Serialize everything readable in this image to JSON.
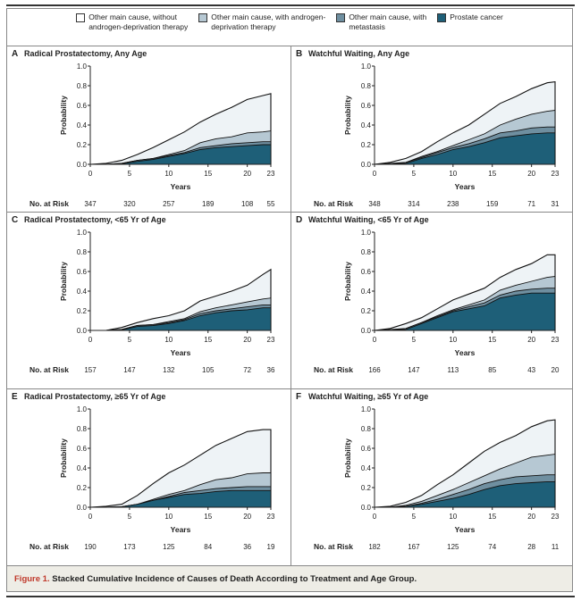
{
  "legend": [
    {
      "label_line1": "Other main cause, without",
      "label_line2": "androgen-deprivation therapy",
      "color": "#eef3f6"
    },
    {
      "label_line1": "Other main cause, with androgen-",
      "label_line2": "deprivation therapy",
      "color": "#b6c8d3"
    },
    {
      "label_line1": "Other main cause, with",
      "label_line2": "metastasis",
      "color": "#6f8fa0"
    },
    {
      "label_line1": "Prostate cancer",
      "label_line2": "",
      "color": "#1e5f78"
    }
  ],
  "caption": {
    "figure_label": "Figure 1.",
    "text": "Stacked Cumulative Incidence of Causes of Death According to Treatment and Age Group."
  },
  "chart_data": [
    {
      "type": "area",
      "stacked": true,
      "letter": "A",
      "title": "Radical Prostatectomy, Any Age",
      "xlabel": "Years",
      "ylabel": "Probability",
      "xlim": [
        0,
        23
      ],
      "ylim": [
        0,
        1
      ],
      "xticks": [
        "0",
        "5",
        "10",
        "15",
        "20",
        "23"
      ],
      "yticks": [
        "0.0",
        "0.2",
        "0.4",
        "0.6",
        "0.8",
        "1.0"
      ],
      "risk_label": "No. at Risk",
      "risk": [
        "347",
        "320",
        "257",
        "189",
        "108",
        "55"
      ],
      "x": [
        0,
        2,
        4,
        6,
        8,
        10,
        12,
        14,
        16,
        18,
        20,
        22,
        23
      ],
      "cumulative_series": [
        {
          "name": "Other main cause, without androgen-deprivation therapy",
          "values": [
            0,
            0.01,
            0.04,
            0.1,
            0.17,
            0.25,
            0.33,
            0.43,
            0.51,
            0.58,
            0.66,
            0.7,
            0.72
          ]
        },
        {
          "name": "Other main cause, with androgen-deprivation therapy",
          "values": [
            0,
            0,
            0.01,
            0.04,
            0.06,
            0.1,
            0.14,
            0.22,
            0.26,
            0.28,
            0.32,
            0.33,
            0.34
          ]
        },
        {
          "name": "Other main cause, with metastasis",
          "values": [
            0,
            0,
            0.01,
            0.04,
            0.06,
            0.09,
            0.12,
            0.17,
            0.19,
            0.21,
            0.22,
            0.23,
            0.23
          ]
        },
        {
          "name": "Prostate cancer",
          "values": [
            0,
            0,
            0.005,
            0.03,
            0.05,
            0.08,
            0.11,
            0.15,
            0.17,
            0.18,
            0.19,
            0.2,
            0.2
          ]
        }
      ]
    },
    {
      "type": "area",
      "stacked": true,
      "letter": "B",
      "title": "Watchful Waiting, Any Age",
      "xlabel": "Years",
      "ylabel": "Probability",
      "xlim": [
        0,
        23
      ],
      "ylim": [
        0,
        1
      ],
      "xticks": [
        "0",
        "5",
        "10",
        "15",
        "20",
        "23"
      ],
      "yticks": [
        "0.0",
        "0.2",
        "0.4",
        "0.6",
        "0.8",
        "1.0"
      ],
      "risk_label": "No. at Risk",
      "risk": [
        "348",
        "314",
        "238",
        "159",
        "71",
        "31"
      ],
      "x": [
        0,
        2,
        4,
        6,
        8,
        10,
        12,
        14,
        16,
        18,
        20,
        22,
        23
      ],
      "cumulative_series": [
        {
          "name": "Other main cause, without androgen-deprivation therapy",
          "values": [
            0,
            0.02,
            0.06,
            0.13,
            0.23,
            0.32,
            0.4,
            0.51,
            0.62,
            0.69,
            0.77,
            0.83,
            0.84
          ]
        },
        {
          "name": "Other main cause, with androgen-deprivation therapy",
          "values": [
            0,
            0.01,
            0.02,
            0.08,
            0.13,
            0.19,
            0.25,
            0.31,
            0.4,
            0.46,
            0.51,
            0.54,
            0.55
          ]
        },
        {
          "name": "Other main cause, with metastasis",
          "values": [
            0,
            0,
            0.02,
            0.07,
            0.12,
            0.17,
            0.21,
            0.26,
            0.32,
            0.34,
            0.37,
            0.38,
            0.38
          ]
        },
        {
          "name": "Prostate cancer",
          "values": [
            0,
            0,
            0.01,
            0.06,
            0.1,
            0.15,
            0.18,
            0.22,
            0.27,
            0.29,
            0.31,
            0.32,
            0.32
          ]
        }
      ]
    },
    {
      "type": "area",
      "stacked": true,
      "letter": "C",
      "title": "Radical Prostatectomy, <65 Yr of Age",
      "xlabel": "Years",
      "ylabel": "Probability",
      "xlim": [
        0,
        23
      ],
      "ylim": [
        0,
        1
      ],
      "xticks": [
        "0",
        "5",
        "10",
        "15",
        "20",
        "23"
      ],
      "yticks": [
        "0.0",
        "0.2",
        "0.4",
        "0.6",
        "0.8",
        "1.0"
      ],
      "risk_label": "No. at Risk",
      "risk": [
        "157",
        "147",
        "132",
        "105",
        "72",
        "36"
      ],
      "x": [
        0,
        2,
        4,
        6,
        8,
        10,
        12,
        14,
        16,
        18,
        20,
        22,
        23
      ],
      "cumulative_series": [
        {
          "name": "Other main cause, without androgen-deprivation therapy",
          "values": [
            0,
            0,
            0.03,
            0.08,
            0.12,
            0.15,
            0.2,
            0.3,
            0.35,
            0.4,
            0.46,
            0.57,
            0.62
          ]
        },
        {
          "name": "Other main cause, with androgen-deprivation therapy",
          "values": [
            0,
            0,
            0.01,
            0.05,
            0.06,
            0.09,
            0.12,
            0.19,
            0.23,
            0.26,
            0.29,
            0.32,
            0.33
          ]
        },
        {
          "name": "Other main cause, with metastasis",
          "values": [
            0,
            0,
            0.01,
            0.05,
            0.06,
            0.08,
            0.11,
            0.17,
            0.2,
            0.22,
            0.24,
            0.26,
            0.26
          ]
        },
        {
          "name": "Prostate cancer",
          "values": [
            0,
            0,
            0.005,
            0.04,
            0.05,
            0.07,
            0.1,
            0.15,
            0.18,
            0.2,
            0.21,
            0.23,
            0.23
          ]
        }
      ]
    },
    {
      "type": "area",
      "stacked": true,
      "letter": "D",
      "title": "Watchful Waiting, <65 Yr of Age",
      "xlabel": "Years",
      "ylabel": "Probability",
      "xlim": [
        0,
        23
      ],
      "ylim": [
        0,
        1
      ],
      "xticks": [
        "0",
        "5",
        "10",
        "15",
        "20",
        "23"
      ],
      "yticks": [
        "0.0",
        "0.2",
        "0.4",
        "0.6",
        "0.8",
        "1.0"
      ],
      "risk_label": "No. at Risk",
      "risk": [
        "166",
        "147",
        "113",
        "85",
        "43",
        "20"
      ],
      "x": [
        0,
        2,
        4,
        6,
        8,
        10,
        12,
        14,
        16,
        18,
        20,
        22,
        23
      ],
      "cumulative_series": [
        {
          "name": "Other main cause, without androgen-deprivation therapy",
          "values": [
            0,
            0.02,
            0.07,
            0.13,
            0.22,
            0.31,
            0.37,
            0.43,
            0.54,
            0.62,
            0.68,
            0.77,
            0.77
          ]
        },
        {
          "name": "Other main cause, with androgen-deprivation therapy",
          "values": [
            0,
            0.01,
            0.02,
            0.08,
            0.15,
            0.21,
            0.26,
            0.31,
            0.41,
            0.46,
            0.5,
            0.54,
            0.55
          ]
        },
        {
          "name": "Other main cause, with metastasis",
          "values": [
            0,
            0,
            0.02,
            0.08,
            0.14,
            0.2,
            0.24,
            0.28,
            0.36,
            0.4,
            0.42,
            0.43,
            0.43
          ]
        },
        {
          "name": "Prostate cancer",
          "values": [
            0,
            0,
            0.01,
            0.07,
            0.13,
            0.19,
            0.22,
            0.25,
            0.33,
            0.36,
            0.38,
            0.38,
            0.38
          ]
        }
      ]
    },
    {
      "type": "area",
      "stacked": true,
      "letter": "E",
      "title": "Radical Prostatectomy, ≥65 Yr of Age",
      "xlabel": "Years",
      "ylabel": "Probability",
      "xlim": [
        0,
        23
      ],
      "ylim": [
        0,
        1
      ],
      "xticks": [
        "0",
        "5",
        "10",
        "15",
        "20",
        "23"
      ],
      "yticks": [
        "0.0",
        "0.2",
        "0.4",
        "0.6",
        "0.8",
        "1.0"
      ],
      "risk_label": "No. at Risk",
      "risk": [
        "190",
        "173",
        "125",
        "84",
        "36",
        "19"
      ],
      "x": [
        0,
        2,
        4,
        6,
        8,
        10,
        12,
        14,
        16,
        18,
        20,
        22,
        23
      ],
      "cumulative_series": [
        {
          "name": "Other main cause, without androgen-deprivation therapy",
          "values": [
            0,
            0.01,
            0.03,
            0.12,
            0.24,
            0.35,
            0.43,
            0.53,
            0.63,
            0.7,
            0.77,
            0.79,
            0.79
          ]
        },
        {
          "name": "Other main cause, with androgen-deprivation therapy",
          "values": [
            0,
            0,
            0.005,
            0.03,
            0.08,
            0.13,
            0.17,
            0.23,
            0.28,
            0.3,
            0.34,
            0.35,
            0.35
          ]
        },
        {
          "name": "Other main cause, with metastasis",
          "values": [
            0,
            0,
            0.005,
            0.03,
            0.07,
            0.11,
            0.15,
            0.17,
            0.19,
            0.2,
            0.21,
            0.21,
            0.21
          ]
        },
        {
          "name": "Prostate cancer",
          "values": [
            0,
            0,
            0.005,
            0.03,
            0.07,
            0.1,
            0.13,
            0.14,
            0.16,
            0.17,
            0.17,
            0.17,
            0.17
          ]
        }
      ]
    },
    {
      "type": "area",
      "stacked": true,
      "letter": "F",
      "title": "Watchful Waiting, ≥65 Yr of Age",
      "xlabel": "Years",
      "ylabel": "Probability",
      "xlim": [
        0,
        23
      ],
      "ylim": [
        0,
        1
      ],
      "xticks": [
        "0",
        "5",
        "10",
        "15",
        "20",
        "23"
      ],
      "yticks": [
        "0.0",
        "0.2",
        "0.4",
        "0.6",
        "0.8",
        "1.0"
      ],
      "risk_label": "No. at Risk",
      "risk": [
        "182",
        "167",
        "125",
        "74",
        "28",
        "11"
      ],
      "x": [
        0,
        2,
        4,
        6,
        8,
        10,
        12,
        14,
        16,
        18,
        20,
        22,
        23
      ],
      "cumulative_series": [
        {
          "name": "Other main cause, without androgen-deprivation therapy",
          "values": [
            0,
            0.01,
            0.05,
            0.12,
            0.23,
            0.33,
            0.45,
            0.57,
            0.66,
            0.73,
            0.82,
            0.88,
            0.89
          ]
        },
        {
          "name": "Other main cause, with androgen-deprivation therapy",
          "values": [
            0,
            0,
            0.02,
            0.06,
            0.12,
            0.18,
            0.25,
            0.32,
            0.39,
            0.45,
            0.51,
            0.53,
            0.54
          ]
        },
        {
          "name": "Other main cause, with metastasis",
          "values": [
            0,
            0,
            0.01,
            0.04,
            0.08,
            0.13,
            0.18,
            0.24,
            0.28,
            0.31,
            0.32,
            0.33,
            0.33
          ]
        },
        {
          "name": "Prostate cancer",
          "values": [
            0,
            0,
            0.01,
            0.03,
            0.06,
            0.09,
            0.13,
            0.18,
            0.22,
            0.24,
            0.25,
            0.26,
            0.26
          ]
        }
      ]
    }
  ]
}
